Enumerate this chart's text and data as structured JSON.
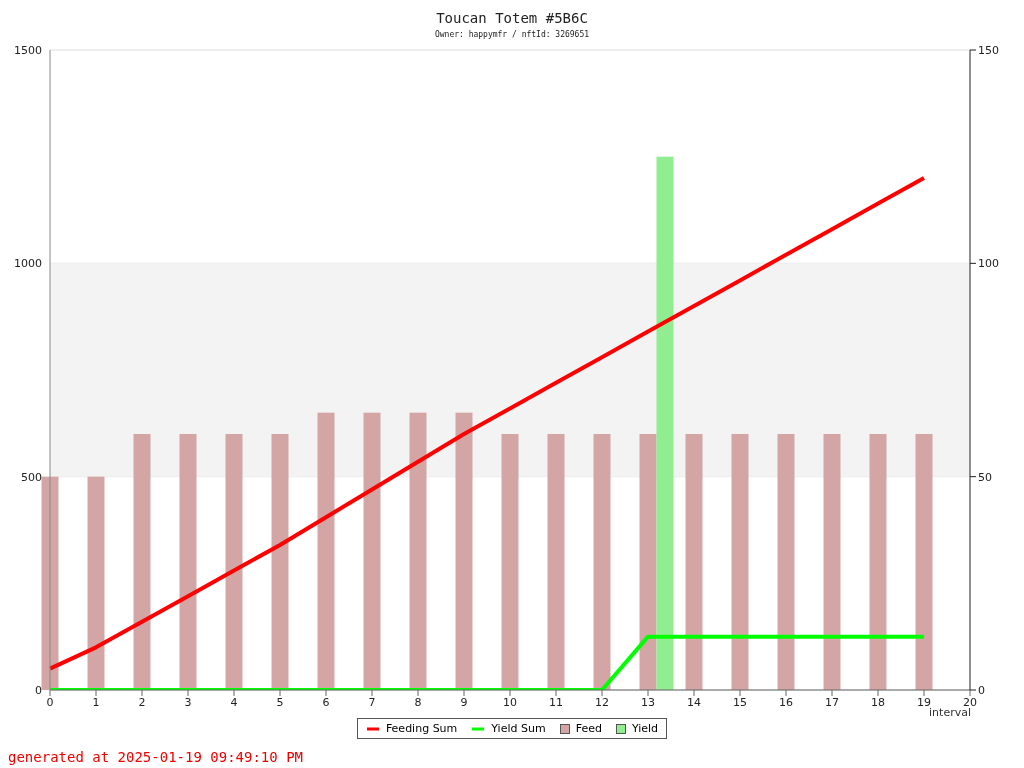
{
  "chart_data": {
    "title": "Toucan Totem #5B6C",
    "subtitle": "Owner: happymfr / nftId: 3269651",
    "xlabel": "interval",
    "annotations": [
      "generated at 2025-01-19 09:49:10 PM"
    ],
    "type": "line",
    "x": [
      0,
      1,
      2,
      3,
      4,
      5,
      6,
      7,
      8,
      9,
      10,
      11,
      12,
      13,
      14,
      15,
      16,
      17,
      18,
      19
    ],
    "series": [
      {
        "name": "Feeding Sum",
        "axis": "y2",
        "color": "#ff0000",
        "values": [
          5,
          10,
          16,
          22,
          28,
          34,
          40.5,
          47,
          53.5,
          60,
          66,
          72,
          78,
          84,
          90,
          96,
          102,
          108,
          114,
          120
        ]
      },
      {
        "name": "Yield Sum",
        "axis": "y2",
        "color": "#00ff00",
        "values": [
          0,
          0,
          0,
          0,
          0,
          0,
          0,
          0,
          0,
          0,
          0,
          0,
          0,
          12.5,
          12.5,
          12.5,
          12.5,
          12.5,
          12.5,
          12.5
        ]
      },
      {
        "name": "Feed",
        "type": "bar",
        "color": "#d4a5a5",
        "values": [
          500,
          500,
          600,
          600,
          600,
          600,
          650,
          650,
          650,
          650,
          600,
          600,
          600,
          600,
          600,
          600,
          600,
          600,
          600,
          600
        ]
      },
      {
        "name": "Yield",
        "type": "bar",
        "color": "#90ee90",
        "values": [
          null,
          null,
          null,
          null,
          null,
          null,
          null,
          null,
          null,
          null,
          null,
          null,
          null,
          1250,
          null,
          null,
          null,
          null,
          null,
          null
        ]
      }
    ],
    "xlim": [
      0,
      20
    ],
    "xticks": [
      0,
      1,
      2,
      3,
      4,
      5,
      6,
      7,
      8,
      9,
      10,
      11,
      12,
      13,
      14,
      15,
      16,
      17,
      18,
      19,
      20
    ],
    "ylim": [
      0,
      1500
    ],
    "yticks": [
      0,
      500,
      1000,
      1500
    ],
    "y2lim": [
      0,
      150
    ],
    "y2ticks": [
      0,
      50,
      100,
      150
    ],
    "bands": [
      {
        "axis": "y",
        "from": 500,
        "to": 1000,
        "color": "#f3f3f3"
      }
    ],
    "grid": "y",
    "legend": "bottom",
    "marker": "none",
    "line_style": "solid"
  }
}
